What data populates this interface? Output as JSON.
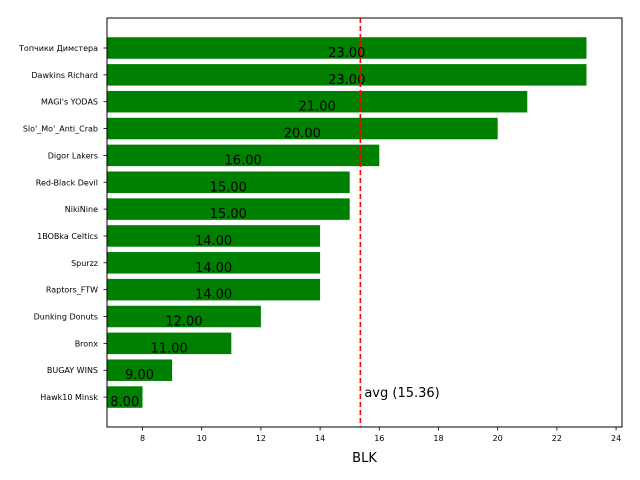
{
  "chart_data": {
    "type": "bar",
    "orientation": "horizontal",
    "categories": [
      "Топчики Димстера",
      "Dawkins Richard",
      "MAGI's YODAS",
      "Slo'_Mo'_Anti_Crab",
      "Digor Lakers",
      "Red-Black Devil",
      "NikiNine",
      "1BOBka Celtics",
      "Spurzz",
      "Raptors_FTW",
      "Dunking Donuts",
      "Bronx",
      "BUGAY WINS",
      "Hawk10 Minsk"
    ],
    "values": [
      23,
      23,
      21,
      20,
      16,
      15,
      15,
      14,
      14,
      14,
      12,
      11,
      9,
      8
    ],
    "value_labels": [
      "23.00",
      "23.00",
      "21.00",
      "20.00",
      "16.00",
      "15.00",
      "15.00",
      "14.00",
      "14.00",
      "14.00",
      "12.00",
      "11.00",
      "9.00",
      "8.00"
    ],
    "xlabel": "BLK",
    "xlim": [
      6.8,
      24.2
    ],
    "xticks": [
      8,
      10,
      12,
      14,
      16,
      18,
      20,
      22,
      24
    ],
    "average": 15.36,
    "average_label": "avg (15.36)",
    "bar_color": "#008000",
    "average_line_color": "#ff0000",
    "grid": false
  }
}
